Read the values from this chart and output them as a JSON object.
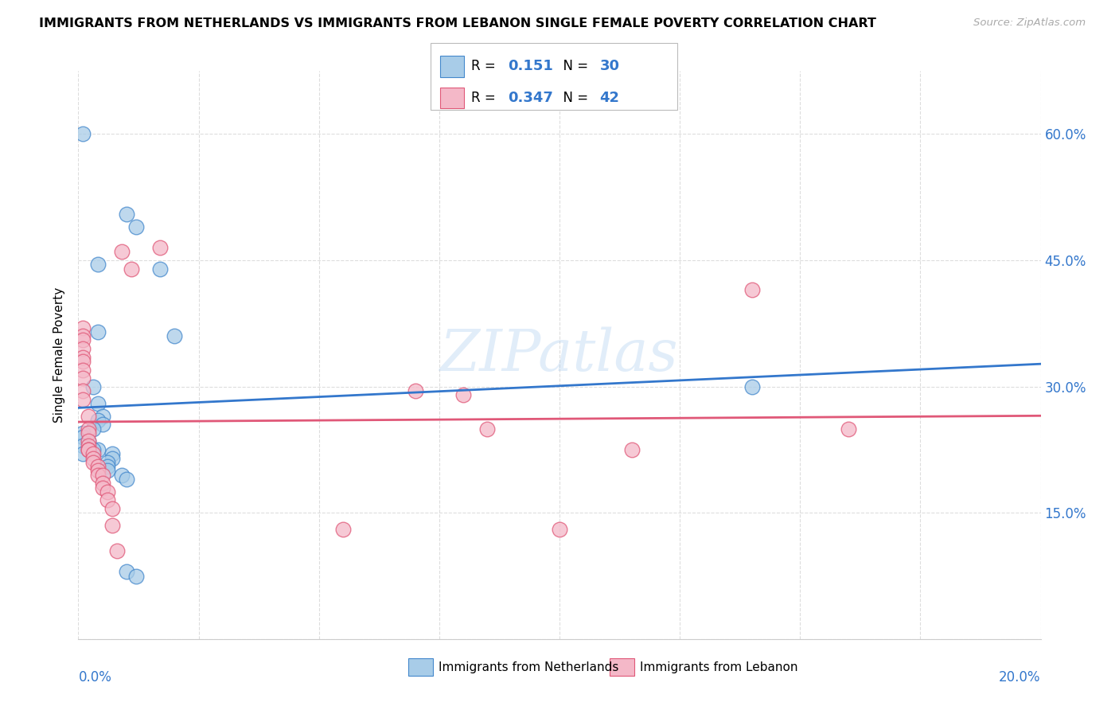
{
  "title": "IMMIGRANTS FROM NETHERLANDS VS IMMIGRANTS FROM LEBANON SINGLE FEMALE POVERTY CORRELATION CHART",
  "source": "Source: ZipAtlas.com",
  "ylabel": "Single Female Poverty",
  "legend_netherlands": {
    "R": "0.151",
    "N": "30"
  },
  "legend_lebanon": {
    "R": "0.347",
    "N": "42"
  },
  "netherlands_color": "#a8cce8",
  "lebanon_color": "#f4b8c8",
  "netherlands_edge_color": "#4488cc",
  "lebanon_edge_color": "#e05878",
  "netherlands_line_color": "#3377cc",
  "lebanon_line_color": "#e05878",
  "watermark": "ZIPatlas",
  "netherlands_points": [
    [
      0.001,
      0.6
    ],
    [
      0.01,
      0.505
    ],
    [
      0.012,
      0.49
    ],
    [
      0.004,
      0.445
    ],
    [
      0.017,
      0.44
    ],
    [
      0.004,
      0.365
    ],
    [
      0.02,
      0.36
    ],
    [
      0.003,
      0.3
    ],
    [
      0.14,
      0.3
    ],
    [
      0.004,
      0.28
    ],
    [
      0.005,
      0.265
    ],
    [
      0.004,
      0.26
    ],
    [
      0.005,
      0.255
    ],
    [
      0.003,
      0.25
    ],
    [
      0.001,
      0.245
    ],
    [
      0.001,
      0.24
    ],
    [
      0.002,
      0.235
    ],
    [
      0.001,
      0.23
    ],
    [
      0.004,
      0.225
    ],
    [
      0.003,
      0.225
    ],
    [
      0.001,
      0.22
    ],
    [
      0.007,
      0.22
    ],
    [
      0.007,
      0.215
    ],
    [
      0.006,
      0.21
    ],
    [
      0.006,
      0.205
    ],
    [
      0.006,
      0.2
    ],
    [
      0.009,
      0.195
    ],
    [
      0.01,
      0.19
    ],
    [
      0.01,
      0.08
    ],
    [
      0.012,
      0.075
    ]
  ],
  "lebanon_points": [
    [
      0.001,
      0.37
    ],
    [
      0.001,
      0.36
    ],
    [
      0.001,
      0.355
    ],
    [
      0.001,
      0.345
    ],
    [
      0.001,
      0.335
    ],
    [
      0.001,
      0.33
    ],
    [
      0.001,
      0.32
    ],
    [
      0.001,
      0.31
    ],
    [
      0.001,
      0.295
    ],
    [
      0.001,
      0.285
    ],
    [
      0.002,
      0.265
    ],
    [
      0.002,
      0.25
    ],
    [
      0.002,
      0.245
    ],
    [
      0.002,
      0.235
    ],
    [
      0.002,
      0.23
    ],
    [
      0.002,
      0.225
    ],
    [
      0.002,
      0.225
    ],
    [
      0.003,
      0.22
    ],
    [
      0.003,
      0.215
    ],
    [
      0.003,
      0.21
    ],
    [
      0.004,
      0.205
    ],
    [
      0.004,
      0.2
    ],
    [
      0.004,
      0.195
    ],
    [
      0.005,
      0.195
    ],
    [
      0.005,
      0.185
    ],
    [
      0.005,
      0.18
    ],
    [
      0.006,
      0.175
    ],
    [
      0.006,
      0.165
    ],
    [
      0.007,
      0.155
    ],
    [
      0.007,
      0.135
    ],
    [
      0.008,
      0.105
    ],
    [
      0.009,
      0.46
    ],
    [
      0.011,
      0.44
    ],
    [
      0.017,
      0.465
    ],
    [
      0.055,
      0.13
    ],
    [
      0.07,
      0.295
    ],
    [
      0.08,
      0.29
    ],
    [
      0.085,
      0.25
    ],
    [
      0.1,
      0.13
    ],
    [
      0.115,
      0.225
    ],
    [
      0.14,
      0.415
    ],
    [
      0.16,
      0.25
    ]
  ],
  "xlim": [
    0.0,
    0.2
  ],
  "ylim": [
    0.0,
    0.675
  ],
  "right_ytick_vals": [
    0.15,
    0.3,
    0.45,
    0.6
  ],
  "right_ytick_labels": [
    "15.0%",
    "30.0%",
    "45.0%",
    "60.0%"
  ],
  "background_color": "#ffffff",
  "grid_color": "#dddddd",
  "legend_text_color": "#3377cc",
  "x_label_color": "#3377cc",
  "right_axis_color": "#3377cc"
}
